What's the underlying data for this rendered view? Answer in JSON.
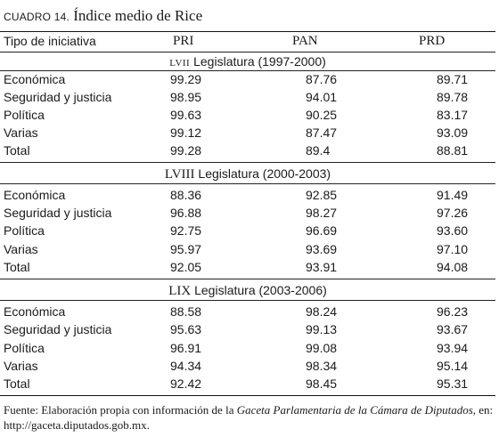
{
  "title": {
    "label": "CUADRO 14.",
    "text": "Índice medio de Rice"
  },
  "table": {
    "headers": [
      "Tipo de iniciativa",
      "PRI",
      "PAN",
      "PRD"
    ],
    "sections": [
      {
        "roman": "LVII",
        "heading": "Legislatura (1997-2000)",
        "rows": [
          [
            "Económica",
            "99.29",
            "87.76",
            "89.71"
          ],
          [
            "Seguridad y justicia",
            "98.95",
            "94.01",
            "89.78"
          ],
          [
            "Política",
            "99.63",
            "90.25",
            "83.17"
          ],
          [
            "Varias",
            "99.12",
            "87.47",
            "93.09"
          ],
          [
            "Total",
            "99.28",
            "89.4",
            "88.81"
          ]
        ]
      },
      {
        "roman": "LVIII",
        "heading": "Legislatura (2000-2003)",
        "rows": [
          [
            "Económica",
            "88.36",
            "92.85",
            "91.49"
          ],
          [
            "Seguridad y justicia",
            "96.88",
            "98.27",
            "97.26"
          ],
          [
            "Política",
            "92.75",
            "96.69",
            "93.60"
          ],
          [
            "Varias",
            "95.97",
            "93.69",
            "97.10"
          ],
          [
            "Total",
            "92.05",
            "93.91",
            "94.08"
          ]
        ]
      },
      {
        "roman": "LIX",
        "heading": "Legislatura (2003-2006)",
        "rows": [
          [
            "Económica",
            "88.58",
            "98.24",
            "96.23"
          ],
          [
            "Seguridad y justicia",
            "95.63",
            "99.13",
            "93.67"
          ],
          [
            "Política",
            "96.91",
            "99.08",
            "93.94"
          ],
          [
            "Varias",
            "94.34",
            "98.34",
            "95.14"
          ],
          [
            "Total",
            "92.42",
            "98.45",
            "95.31"
          ]
        ]
      }
    ]
  },
  "source": {
    "prefix": "Fuente: Elaboración propia con información de la ",
    "italic": "Gaceta Parlamentaria de la Cámara de Diputados",
    "suffix": ", en:",
    "url": "http://gaceta.diputados.gob.mx."
  }
}
